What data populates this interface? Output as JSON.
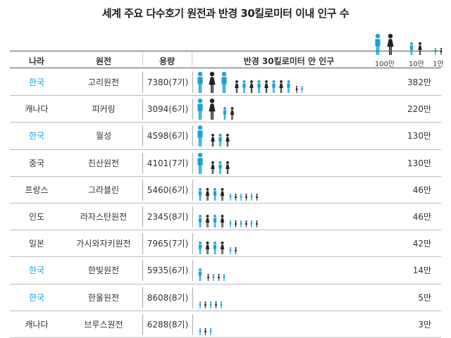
{
  "title": "세계 주요 다수호기 원전과 반경 30킬로미터 이내 인구 수",
  "headers": {
    "country": "나라",
    "plant": "원전",
    "capacity": "용량",
    "population": "반경 30킬로미터 안 인구"
  },
  "legend": [
    {
      "label": "100만",
      "unit": 1000000
    },
    {
      "label": "10만",
      "unit": 100000
    },
    {
      "label": "1만",
      "unit": 10000
    }
  ],
  "colors": {
    "blue": "#1aa1d6",
    "black": "#222222",
    "korea_text": "#1aa1d6"
  },
  "chart_data": {
    "type": "table",
    "columns": [
      "나라",
      "원전",
      "용량",
      "반경 30킬로미터 안 인구"
    ],
    "rows": [
      {
        "country": "한국",
        "korea": true,
        "plant": "고리원전",
        "capacity": "7380(7기)",
        "population_label": "382만",
        "population": 3820000
      },
      {
        "country": "캐나다",
        "korea": false,
        "plant": "피커링",
        "capacity": "3094(6기)",
        "population_label": "220만",
        "population": 2200000
      },
      {
        "country": "한국",
        "korea": true,
        "plant": "월성",
        "capacity": "4598(6기)",
        "population_label": "130만",
        "population": 1300000
      },
      {
        "country": "중국",
        "korea": false,
        "plant": "친산원전",
        "capacity": "4101(7기)",
        "population_label": "130만",
        "population": 1300000
      },
      {
        "country": "프랑스",
        "korea": false,
        "plant": "그라블린",
        "capacity": "5460(6기)",
        "population_label": "46만",
        "population": 460000
      },
      {
        "country": "인도",
        "korea": false,
        "plant": "라자스탄원전",
        "capacity": "2345(8기)",
        "population_label": "46만",
        "population": 460000
      },
      {
        "country": "일본",
        "korea": false,
        "plant": "가시와자키원전",
        "capacity": "7965(7기)",
        "population_label": "42만",
        "population": 420000
      },
      {
        "country": "한국",
        "korea": true,
        "plant": "한빛원전",
        "capacity": "5935(6기)",
        "population_label": "14만",
        "population": 140000
      },
      {
        "country": "한국",
        "korea": true,
        "plant": "한울원전",
        "capacity": "8608(8기)",
        "population_label": "5만",
        "population": 50000
      },
      {
        "country": "캐나다",
        "korea": false,
        "plant": "브루스원전",
        "capacity": "6288(8기)",
        "population_label": "3만",
        "population": 30000
      }
    ]
  }
}
